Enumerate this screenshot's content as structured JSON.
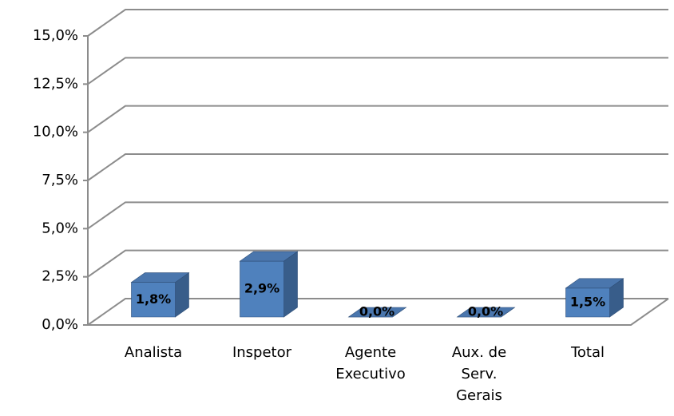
{
  "chart_data": {
    "type": "bar3d",
    "categories": [
      "Analista",
      "Inspetor",
      "Agente Executivo",
      "Aux. de Serv. Gerais",
      "Total"
    ],
    "values": [
      1.8,
      2.9,
      0,
      0,
      1.5
    ],
    "value_labels": [
      "1,8%",
      "2,9%",
      "0,0%",
      "0,0%",
      "1,5%"
    ],
    "color": "#4f81bd",
    "ylim": [
      0,
      15
    ],
    "yticks": [
      {
        "value": 0,
        "label": "0,0%"
      },
      {
        "value": 2.5,
        "label": "2,5%"
      },
      {
        "value": 5,
        "label": "5,0%"
      },
      {
        "value": 7.5,
        "label": "7,5%"
      },
      {
        "value": 10,
        "label": "10,0%"
      },
      {
        "value": 12.5,
        "label": "12,5%"
      },
      {
        "value": 15,
        "label": "15,0%"
      }
    ],
    "grid": true
  }
}
